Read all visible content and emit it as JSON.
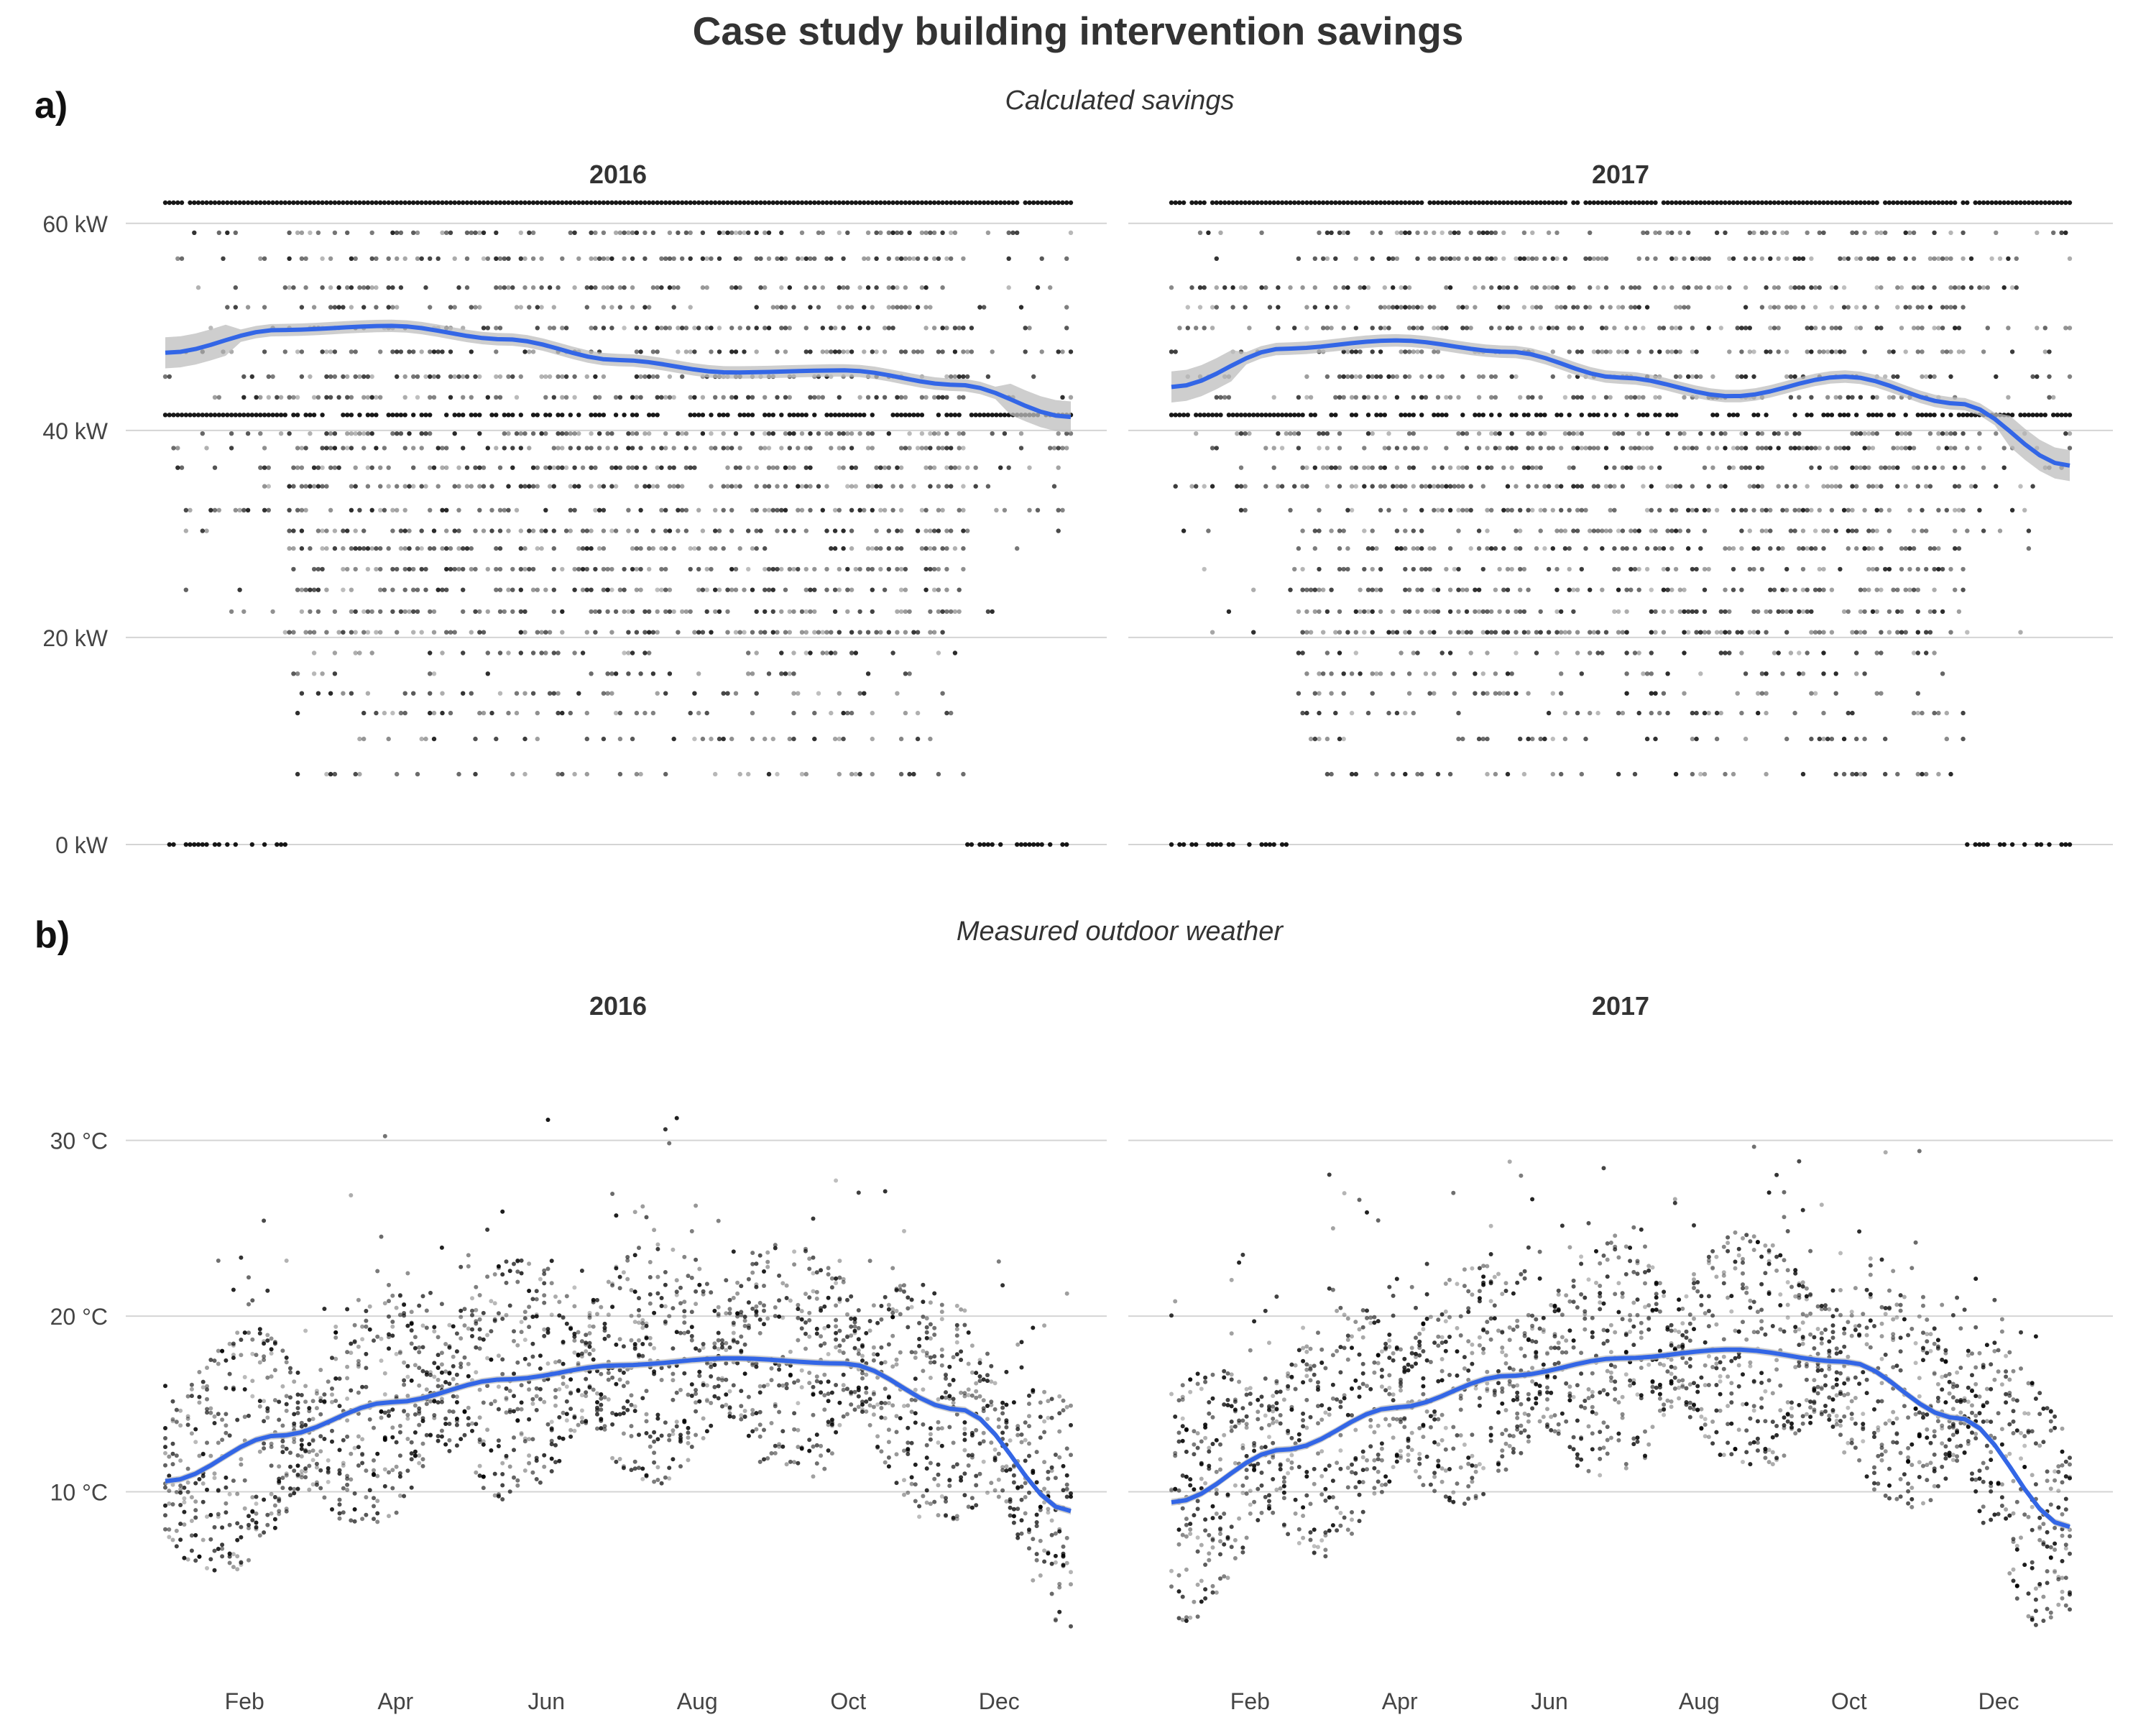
{
  "title": "Case study building intervention savings",
  "panels": [
    {
      "letter": "a)",
      "subtitle": "Calculated savings"
    },
    {
      "letter": "b)",
      "subtitle": "Measured outdoor weather"
    }
  ],
  "colors": {
    "smooth": "#3366e6",
    "ribbon": "#bdbdbd",
    "points": "#000000",
    "grid": "#d4d4d4"
  },
  "chart_data": [
    {
      "type": "scatter",
      "panel": "a)",
      "subtitle": "Calculated savings",
      "ylabel": "",
      "y_unit": "kW",
      "ylim": [
        0,
        62
      ],
      "y_ticks": [
        0,
        20,
        40,
        60
      ],
      "y_tick_labels": [
        "0 kW",
        "20 kW",
        "40 kW",
        "60 kW"
      ],
      "x_tick_labels": [],
      "grid": true,
      "point_levels_kW": [
        0,
        6.8,
        10.2,
        12.7,
        14.6,
        16.5,
        18.5,
        20.5,
        22.5,
        24.6,
        26.6,
        28.6,
        30.3,
        32.3,
        34.6,
        36.4,
        38.3,
        39.7,
        41.5,
        43.2,
        45.2,
        47.6,
        49.9,
        51.9,
        53.8,
        56.6,
        59.1,
        62.0
      ],
      "facets": [
        {
          "label": "2016",
          "smooth": {
            "x_month": [
              0,
              1.5,
              3,
              4.5,
              6,
              7.5,
              9,
              10.5,
              12
            ],
            "y": [
              47.5,
              49.7,
              50.1,
              48.8,
              46.8,
              45.6,
              45.8,
              44.4,
              41.3
            ]
          }
        },
        {
          "label": "2017",
          "smooth": {
            "x_month": [
              0,
              1.5,
              3,
              4.5,
              6,
              7.5,
              9,
              10.5,
              12
            ],
            "y": [
              44.2,
              47.9,
              48.7,
              47.6,
              45.1,
              43.3,
              45.2,
              42.6,
              36.6
            ]
          }
        }
      ]
    },
    {
      "type": "scatter",
      "panel": "b)",
      "subtitle": "Measured outdoor weather",
      "ylabel": "",
      "y_unit": "°C",
      "ylim": [
        0,
        36
      ],
      "y_ticks": [
        10,
        20,
        30
      ],
      "y_tick_labels": [
        "10 °C",
        "20 °C",
        "30 °C"
      ],
      "x_tick_labels": [
        "Feb",
        "Apr",
        "Jun",
        "Aug",
        "Oct",
        "Dec"
      ],
      "grid": true,
      "facets": [
        {
          "label": "2016",
          "smooth": {
            "x_month": [
              0,
              1.5,
              3,
              4.5,
              6,
              7.5,
              9,
              10.5,
              12
            ],
            "y": [
              10.6,
              13.2,
              15.1,
              16.4,
              17.2,
              17.6,
              17.3,
              14.7,
              8.9
            ]
          }
        },
        {
          "label": "2017",
          "smooth": {
            "x_month": [
              0,
              1.5,
              3,
              4.5,
              6,
              7.5,
              9,
              10.5,
              12
            ],
            "y": [
              9.4,
              12.4,
              14.8,
              16.6,
              17.6,
              18.1,
              17.4,
              14.2,
              8.0
            ]
          }
        }
      ]
    }
  ]
}
